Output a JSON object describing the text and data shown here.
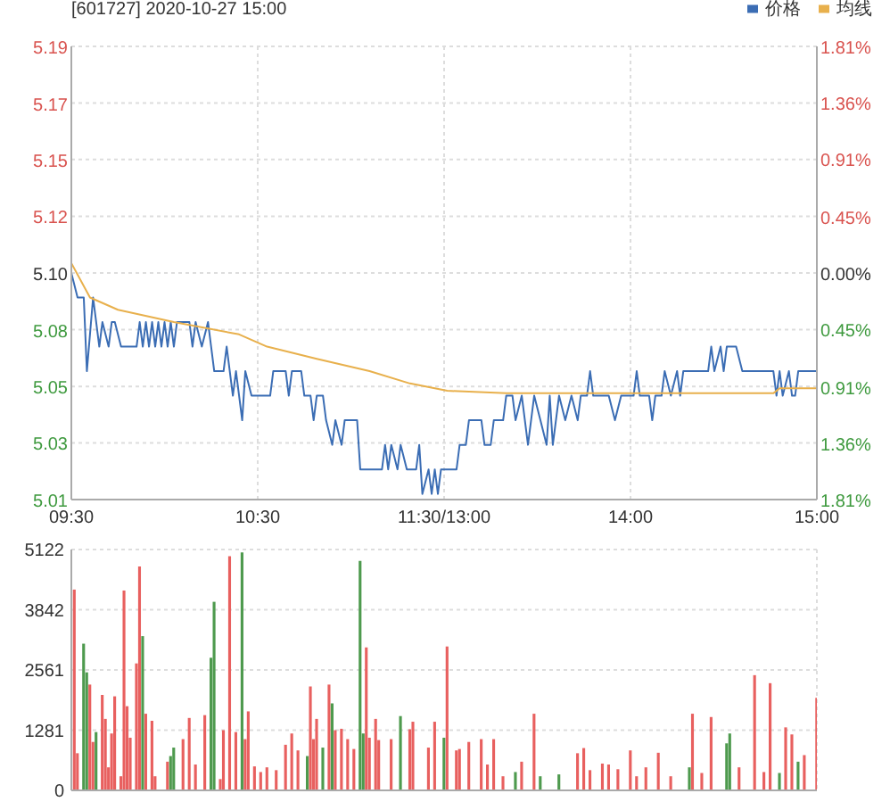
{
  "chart_data": [
    {
      "type": "line",
      "title": "[601727] 2020-10-27 15:00",
      "legend": "top right",
      "grid": true,
      "categories": [
        "09:30",
        null,
        null,
        null,
        null,
        null,
        null,
        null,
        null,
        null,
        null,
        null,
        null,
        null,
        null,
        null,
        null,
        null,
        null,
        null,
        null,
        null,
        null,
        null,
        null,
        null,
        null,
        null,
        null,
        null,
        null,
        null,
        null,
        null,
        null,
        null,
        null,
        null,
        null,
        null,
        null,
        null,
        null,
        null,
        null,
        null,
        null,
        null,
        null,
        null,
        null,
        null,
        null,
        null,
        null,
        null,
        null,
        null,
        null,
        null,
        "10:30",
        null,
        null,
        null,
        null,
        null,
        null,
        null,
        null,
        null,
        null,
        null,
        null,
        null,
        null,
        null,
        null,
        null,
        null,
        null,
        null,
        null,
        null,
        null,
        null,
        null,
        null,
        null,
        null,
        null,
        null,
        null,
        null,
        null,
        null,
        null,
        null,
        null,
        null,
        null,
        null,
        null,
        null,
        null,
        null,
        null,
        null,
        null,
        null,
        null,
        null,
        null,
        null,
        null,
        null,
        null,
        null,
        null,
        null,
        null,
        "11:30/13:00",
        null,
        null,
        null,
        null,
        null,
        null,
        null,
        null,
        null,
        null,
        null,
        null,
        null,
        null,
        null,
        null,
        null,
        null,
        null,
        null,
        null,
        null,
        null,
        null,
        null,
        null,
        null,
        null,
        null,
        null,
        null,
        null,
        null,
        null,
        null,
        null,
        null,
        null,
        null,
        null,
        null,
        null,
        null,
        null,
        null,
        null,
        null,
        null,
        null,
        null,
        null,
        null,
        null,
        null,
        null,
        null,
        null,
        null,
        null,
        "14:00",
        null,
        null,
        null,
        null,
        null,
        null,
        null,
        null,
        null,
        null,
        null,
        null,
        null,
        null,
        null,
        null,
        null,
        null,
        null,
        null,
        null,
        null,
        null,
        null,
        null,
        null,
        null,
        null,
        null,
        null,
        null,
        null,
        null,
        null,
        null,
        null,
        null,
        null,
        null,
        null,
        null,
        null,
        null,
        null,
        null,
        null,
        null,
        null,
        null,
        null,
        null,
        null,
        null,
        null,
        null,
        null,
        null,
        null,
        null,
        "15:00"
      ],
      "ylim": [
        5.0077,
        5.1923
      ],
      "yticks": [
        {
          "value": 5.0077,
          "label": "5.01"
        },
        {
          "value": 5.0308,
          "label": "5.03"
        },
        {
          "value": 5.0538,
          "label": "5.05"
        },
        {
          "value": 5.0769,
          "label": "5.08"
        },
        {
          "value": 5.1,
          "label": "5.10"
        },
        {
          "value": 5.1231,
          "label": "5.12"
        },
        {
          "value": 5.1462,
          "label": "5.15"
        },
        {
          "value": 5.1692,
          "label": "5.17"
        },
        {
          "value": 5.1923,
          "label": "5.19"
        }
      ],
      "y2lim": [
        -1.81,
        1.81
      ],
      "y2ticks": [
        {
          "value": -1.81,
          "label": "1.81%"
        },
        {
          "value": -1.36,
          "label": "1.36%"
        },
        {
          "value": -0.91,
          "label": "0.91%"
        },
        {
          "value": -0.45,
          "label": "0.45%"
        },
        {
          "value": 0,
          "label": "0.00%"
        },
        {
          "value": 0.45,
          "label": "0.45%"
        },
        {
          "value": 0.91,
          "label": "0.91%"
        },
        {
          "value": 1.36,
          "label": "1.36%"
        },
        {
          "value": 1.81,
          "label": "1.81%"
        }
      ],
      "series": [
        {
          "name": "价格",
          "color": "#3b6db4",
          "values": [
            5.1,
            null,
            5.09,
            null,
            5.09,
            5.06,
            null,
            5.09,
            null,
            5.07,
            5.08,
            null,
            5.07,
            5.08,
            5.08,
            null,
            5.07,
            null,
            null,
            null,
            null,
            5.07,
            5.08,
            5.07,
            5.08,
            5.07,
            5.08,
            5.07,
            5.08,
            5.07,
            5.08,
            5.07,
            5.08,
            5.07,
            5.08,
            null,
            null,
            null,
            5.08,
            5.07,
            5.08,
            null,
            5.07,
            null,
            5.08,
            5.07,
            5.06,
            null,
            null,
            5.06,
            5.07,
            5.06,
            5.05,
            5.06,
            null,
            5.04,
            5.06,
            null,
            5.05,
            null,
            null,
            null,
            null,
            null,
            5.05,
            5.06,
            null,
            null,
            null,
            5.06,
            5.05,
            5.06,
            null,
            null,
            5.06,
            5.05,
            null,
            5.05,
            5.04,
            5.05,
            null,
            5.05,
            5.04,
            null,
            5.03,
            5.04,
            null,
            5.03,
            5.04,
            null,
            null,
            null,
            5.04,
            5.02,
            null,
            null,
            null,
            null,
            null,
            null,
            5.02,
            5.03,
            5.02,
            5.03,
            null,
            5.02,
            5.03,
            null,
            5.02,
            null,
            null,
            5.02,
            5.03,
            5.01,
            null,
            5.02,
            5.01,
            5.02,
            5.01,
            5.02,
            null,
            null,
            null,
            null,
            5.02,
            5.03,
            null,
            5.03,
            5.04,
            null,
            null,
            null,
            5.04,
            5.03,
            null,
            5.03,
            5.04,
            null,
            null,
            5.04,
            5.05,
            null,
            5.05,
            5.04,
            null,
            5.05,
            null,
            5.03,
            null,
            5.05,
            null,
            5.04,
            null,
            5.03,
            5.05,
            5.03,
            null,
            5.05,
            null,
            5.04,
            null,
            5.05,
            null,
            5.04,
            5.05,
            null,
            5.05,
            5.06,
            5.05,
            null,
            null,
            null,
            null,
            5.05,
            null,
            5.04,
            null,
            5.05,
            null,
            null,
            null,
            5.05,
            5.06,
            5.05,
            null,
            null,
            5.05,
            5.04,
            5.05,
            null,
            5.05,
            5.06,
            null,
            5.05,
            null,
            5.06,
            5.05,
            5.06,
            null,
            null,
            null,
            null,
            null,
            null,
            null,
            5.06,
            5.07,
            5.06,
            null,
            5.07,
            5.06,
            5.07,
            null,
            null,
            5.07,
            null,
            5.06,
            null,
            null,
            null,
            null,
            null,
            null,
            null,
            null,
            null,
            5.06,
            5.05,
            5.06,
            5.05,
            null,
            5.06,
            5.05,
            5.05,
            5.06,
            null,
            null,
            null,
            null,
            null,
            5.06
          ]
        },
        {
          "name": "均线",
          "color": "#e8b04c",
          "values": [
            5.104,
            null,
            null,
            null,
            null,
            null,
            5.09,
            null,
            null,
            null,
            null,
            null,
            null,
            null,
            null,
            5.085,
            null,
            null,
            null,
            null,
            null,
            null,
            null,
            null,
            null,
            null,
            null,
            null,
            null,
            null,
            null,
            null,
            null,
            5.08,
            null,
            null,
            null,
            null,
            null,
            null,
            null,
            null,
            null,
            null,
            null,
            null,
            null,
            null,
            null,
            null,
            null,
            null,
            null,
            null,
            5.075,
            null,
            null,
            null,
            null,
            null,
            null,
            null,
            null,
            5.07,
            null,
            null,
            null,
            null,
            null,
            null,
            null,
            null,
            null,
            null,
            null,
            null,
            null,
            null,
            null,
            5.065,
            null,
            null,
            null,
            null,
            null,
            null,
            null,
            null,
            null,
            null,
            null,
            null,
            null,
            null,
            null,
            null,
            5.06,
            null,
            null,
            null,
            null,
            null,
            null,
            null,
            null,
            null,
            null,
            null,
            null,
            5.055,
            null,
            null,
            null,
            null,
            null,
            null,
            null,
            null,
            null,
            null,
            null,
            5.052,
            null,
            null,
            null,
            null,
            null,
            null,
            null,
            null,
            null,
            null,
            null,
            null,
            null,
            null,
            null,
            null,
            null,
            null,
            5.051,
            null,
            null,
            null,
            null,
            null,
            null,
            null,
            null,
            null,
            null,
            null,
            null,
            null,
            null,
            null,
            null,
            null,
            null,
            null,
            null,
            null,
            null,
            null,
            null,
            null,
            null,
            null,
            null,
            null,
            null,
            null,
            null,
            null,
            null,
            null,
            null,
            null,
            null,
            null,
            null,
            null,
            null,
            null,
            null,
            null,
            null,
            null,
            null,
            null,
            null,
            null,
            null,
            null,
            null,
            null,
            null,
            null,
            null,
            null,
            null,
            null,
            null,
            null,
            null,
            null,
            null,
            null,
            null,
            null,
            null,
            null,
            null,
            null,
            null,
            null,
            null,
            null,
            null,
            null,
            null,
            null,
            null,
            null,
            null,
            null,
            5.051,
            null,
            5.053,
            null,
            null,
            null,
            null,
            null,
            null,
            null,
            null,
            null,
            null,
            null,
            5.053
          ]
        }
      ]
    },
    {
      "type": "bar",
      "grid": true,
      "tick_labels": "y",
      "categories": [
        null,
        null,
        null,
        null,
        null,
        null,
        null,
        null,
        null,
        null,
        null,
        null,
        null,
        null,
        null,
        null,
        null,
        null,
        null,
        null,
        null,
        null,
        null,
        null,
        null,
        null,
        null,
        null,
        null,
        null,
        null,
        null,
        null,
        null,
        null,
        null,
        null,
        null,
        null,
        null,
        null,
        null,
        null,
        null,
        null,
        null,
        null,
        null,
        null,
        null,
        null,
        null,
        null,
        null,
        null,
        null,
        null,
        null,
        null,
        null,
        null,
        null,
        null,
        null,
        null,
        null,
        null,
        null,
        null,
        null,
        null,
        null,
        null,
        null,
        null,
        null,
        null,
        null,
        null,
        null,
        null,
        null,
        null,
        null,
        null,
        null,
        null,
        null,
        null,
        null,
        null,
        null,
        null,
        null,
        null,
        null,
        null,
        null,
        null,
        null,
        null,
        null,
        null,
        null,
        null,
        null,
        null,
        null,
        null,
        null,
        null,
        null,
        null,
        null,
        null,
        null,
        null,
        null,
        null,
        null,
        null,
        null,
        null,
        null,
        null,
        null,
        null,
        null,
        null,
        null,
        null,
        null,
        null,
        null,
        null,
        null,
        null,
        null,
        null,
        null,
        null,
        null,
        null,
        null,
        null,
        null,
        null,
        null,
        null,
        null,
        null,
        null,
        null,
        null,
        null,
        null,
        null,
        null,
        null,
        null,
        null,
        null,
        null,
        null,
        null,
        null,
        null,
        null,
        null,
        null,
        null,
        null,
        null,
        null,
        null,
        null,
        null,
        null,
        null,
        null,
        null,
        null,
        null,
        null,
        null,
        null,
        null,
        null,
        null,
        null,
        null,
        null,
        null,
        null,
        null,
        null,
        null,
        null,
        null,
        null,
        null,
        null,
        null,
        null,
        null,
        null,
        null,
        null,
        null,
        null,
        null,
        null,
        null,
        null,
        null,
        null,
        null,
        null,
        null,
        null,
        null,
        null,
        null,
        null,
        null,
        null,
        null,
        null,
        null,
        null,
        null,
        null,
        null,
        null,
        null,
        null,
        null,
        null,
        null,
        null,
        null
      ],
      "ylim": [
        0,
        5122
      ],
      "yticks": [
        0,
        1281,
        2561,
        3842,
        5122
      ],
      "values": [
        null,
        4270,
        790,
        null,
        3120,
        2510,
        2250,
        1030,
        1240,
        null,
        2030,
        1520,
        490,
        1210,
        2000,
        null,
        300,
        4250,
        1790,
        1120,
        null,
        2700,
        4760,
        3280,
        1630,
        null,
        1480,
        300,
        null,
        null,
        null,
        610,
        730,
        910,
        null,
        null,
        1090,
        null,
        1540,
        null,
        550,
        null,
        null,
        1600,
        null,
        2820,
        4010,
        null,
        240,
        1280,
        null,
        4980,
        null,
        1240,
        null,
        5060,
        1090,
        1680,
        null,
        510,
        null,
        390,
        null,
        490,
        null,
        null,
        430,
        null,
        null,
        970,
        null,
        1210,
        null,
        850,
        null,
        null,
        730,
        2210,
        1090,
        1520,
        null,
        910,
        null,
        2250,
        1850,
        1280,
        null,
        1310,
        null,
        1090,
        null,
        880,
        null,
        4880,
        1210,
        3040,
        1120,
        null,
        1520,
        1070,
        null,
        null,
        null,
        1090,
        null,
        null,
        1580,
        null,
        null,
        1300,
        1460,
        null,
        null,
        null,
        null,
        910,
        null,
        1460,
        null,
        null,
        1120,
        3060,
        null,
        null,
        850,
        880,
        null,
        null,
        1030,
        null,
        null,
        null,
        1090,
        null,
        550,
        null,
        1090,
        null,
        null,
        300,
        null,
        null,
        null,
        390,
        null,
        610,
        null,
        null,
        null,
        1630,
        null,
        300,
        null,
        null,
        null,
        null,
        null,
        340,
        null,
        null,
        null,
        null,
        null,
        790,
        null,
        900,
        null,
        430,
        null,
        null,
        null,
        570,
        null,
        550,
        null,
        null,
        450,
        null,
        null,
        null,
        850,
        null,
        300,
        null,
        null,
        490,
        null,
        null,
        null,
        800,
        null,
        null,
        null,
        300,
        null,
        null,
        null,
        null,
        null,
        490,
        1630,
        null,
        null,
        370,
        null,
        null,
        1560,
        null,
        null,
        null,
        null,
        1000,
        1210,
        null,
        null,
        490,
        null,
        null,
        null,
        null,
        2450,
        null,
        null,
        390,
        null,
        2280,
        null,
        null,
        370,
        null,
        1340,
        null,
        1190,
        null,
        610,
        null,
        750,
        null,
        null,
        null,
        1970
      ],
      "colors": [
        null,
        "#e8605f",
        "#e8605f",
        null,
        "#4e9a4e",
        "#4e9a4e",
        "#e8605f",
        "#e8605f",
        "#4e9a4e",
        null,
        "#e8605f",
        "#e8605f",
        "#e8605f",
        "#e8605f",
        "#e8605f",
        null,
        "#e8605f",
        "#e8605f",
        "#e8605f",
        "#e8605f",
        null,
        "#e8605f",
        "#e8605f",
        "#4e9a4e",
        "#e8605f",
        null,
        "#e8605f",
        "#e8605f",
        null,
        null,
        null,
        "#e8605f",
        "#4e9a4e",
        "#4e9a4e",
        null,
        null,
        "#e8605f",
        null,
        "#e8605f",
        null,
        "#e8605f",
        null,
        null,
        "#e8605f",
        null,
        "#4e9a4e",
        "#4e9a4e",
        null,
        "#e8605f",
        "#e8605f",
        null,
        "#e8605f",
        null,
        "#e8605f",
        null,
        "#4e9a4e",
        "#e8605f",
        "#e8605f",
        null,
        "#e8605f",
        null,
        "#e8605f",
        null,
        "#e8605f",
        null,
        null,
        "#e8605f",
        null,
        null,
        "#e8605f",
        null,
        "#e8605f",
        null,
        "#e8605f",
        null,
        null,
        "#4e9a4e",
        "#e8605f",
        "#e8605f",
        "#e8605f",
        null,
        "#4e9a4e",
        null,
        "#e8605f",
        "#4e9a4e",
        "#e8605f",
        null,
        "#e8605f",
        null,
        "#e8605f",
        null,
        "#e8605f",
        null,
        "#4e9a4e",
        "#4e9a4e",
        "#e8605f",
        "#e8605f",
        null,
        "#e8605f",
        "#e8605f",
        null,
        null,
        null,
        "#e8605f",
        null,
        null,
        "#4e9a4e",
        null,
        null,
        "#e8605f",
        "#e8605f",
        null,
        null,
        null,
        null,
        "#e8605f",
        null,
        "#e8605f",
        null,
        null,
        "#4e9a4e",
        "#e8605f",
        null,
        null,
        "#e8605f",
        "#e8605f",
        null,
        null,
        "#e8605f",
        null,
        null,
        null,
        "#e8605f",
        null,
        "#e8605f",
        null,
        "#e8605f",
        null,
        null,
        "#e8605f",
        null,
        null,
        null,
        "#4e9a4e",
        null,
        "#e8605f",
        null,
        null,
        null,
        "#e8605f",
        null,
        "#4e9a4e",
        null,
        null,
        null,
        null,
        null,
        "#4e9a4e",
        null,
        null,
        null,
        null,
        null,
        "#e8605f",
        null,
        "#e8605f",
        null,
        "#e8605f",
        null,
        null,
        null,
        "#e8605f",
        null,
        "#e8605f",
        null,
        null,
        "#e8605f",
        null,
        null,
        null,
        "#e8605f",
        null,
        "#e8605f",
        null,
        null,
        "#e8605f",
        null,
        null,
        null,
        "#e8605f",
        null,
        null,
        null,
        "#e8605f",
        null,
        null,
        null,
        null,
        null,
        "#4e9a4e",
        "#e8605f",
        null,
        null,
        "#e8605f",
        null,
        null,
        "#e8605f",
        null,
        null,
        null,
        null,
        "#4e9a4e",
        "#4e9a4e",
        null,
        null,
        "#e8605f",
        null,
        null,
        null,
        null,
        "#e8605f",
        null,
        null,
        "#e8605f",
        null,
        "#e8605f",
        null,
        null,
        "#4e9a4e",
        null,
        "#e8605f",
        null,
        "#e8605f",
        null,
        "#4e9a4e",
        null,
        "#e8605f",
        null,
        null,
        null,
        "#e8605f"
      ]
    }
  ]
}
